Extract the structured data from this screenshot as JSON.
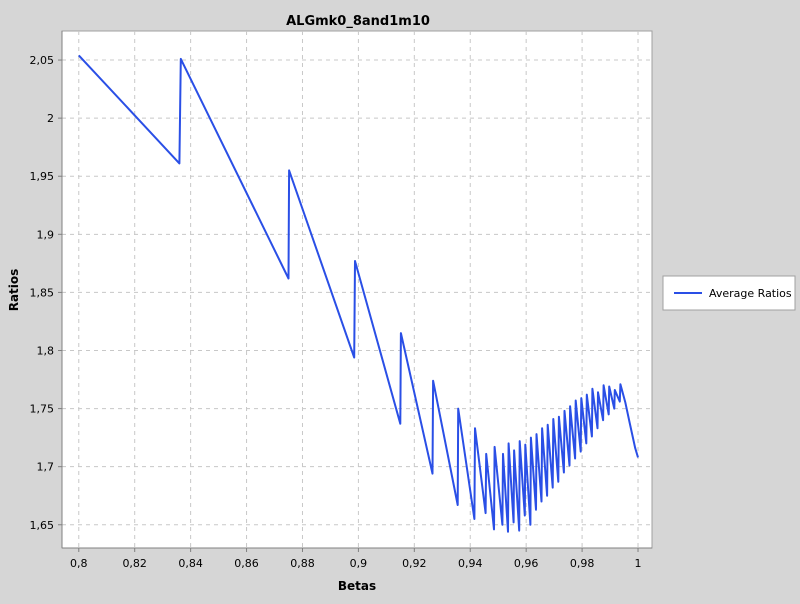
{
  "chart_data": {
    "type": "line",
    "title": "ALGmk0_8and1m10",
    "xlabel": "Betas",
    "ylabel": "Ratios",
    "xlim": [
      0.794,
      1.005
    ],
    "ylim": [
      1.63,
      2.075
    ],
    "x_ticks": [
      0.8,
      0.82,
      0.84,
      0.86,
      0.88,
      0.9,
      0.92,
      0.94,
      0.96,
      0.98,
      1.0
    ],
    "x_tick_labels": [
      "0,8",
      "0,82",
      "0,84",
      "0,86",
      "0,88",
      "0,9",
      "0,92",
      "0,94",
      "0,96",
      "0,98",
      "1"
    ],
    "y_ticks": [
      1.65,
      1.7,
      1.75,
      1.8,
      1.85,
      1.9,
      1.95,
      2.0,
      2.05
    ],
    "y_tick_labels": [
      "1,65",
      "1,7",
      "1,75",
      "1,8",
      "1,85",
      "1,9",
      "1,95",
      "2",
      "2,05"
    ],
    "grid": true,
    "legend_position": "right",
    "colors": {
      "series": "#2a4fe6",
      "plot_bg": "#ffffff",
      "page_bg": "#d6d6d6",
      "grid": "#c8c8c8"
    },
    "series": [
      {
        "name": "Average Ratios",
        "points": [
          [
            0.8,
            2.054
          ],
          [
            0.836,
            1.961
          ],
          [
            0.8365,
            2.051
          ],
          [
            0.875,
            1.862
          ],
          [
            0.8752,
            1.955
          ],
          [
            0.8985,
            1.794
          ],
          [
            0.8988,
            1.877
          ],
          [
            0.915,
            1.737
          ],
          [
            0.9152,
            1.815
          ],
          [
            0.9265,
            1.694
          ],
          [
            0.9267,
            1.774
          ],
          [
            0.9355,
            1.667
          ],
          [
            0.9357,
            1.75
          ],
          [
            0.9415,
            1.655
          ],
          [
            0.9417,
            1.733
          ],
          [
            0.9455,
            1.66
          ],
          [
            0.9457,
            1.711
          ],
          [
            0.9485,
            1.646
          ],
          [
            0.9487,
            1.717
          ],
          [
            0.9515,
            1.65
          ],
          [
            0.9517,
            1.711
          ],
          [
            0.9535,
            1.644
          ],
          [
            0.9537,
            1.72
          ],
          [
            0.9555,
            1.652
          ],
          [
            0.9557,
            1.714
          ],
          [
            0.9575,
            1.645
          ],
          [
            0.9577,
            1.722
          ],
          [
            0.9595,
            1.658
          ],
          [
            0.9597,
            1.719
          ],
          [
            0.9615,
            1.65
          ],
          [
            0.9617,
            1.725
          ],
          [
            0.9635,
            1.663
          ],
          [
            0.9637,
            1.728
          ],
          [
            0.9655,
            1.67
          ],
          [
            0.9657,
            1.733
          ],
          [
            0.9675,
            1.675
          ],
          [
            0.9677,
            1.736
          ],
          [
            0.9695,
            1.682
          ],
          [
            0.9697,
            1.741
          ],
          [
            0.9715,
            1.687
          ],
          [
            0.9717,
            1.743
          ],
          [
            0.9735,
            1.695
          ],
          [
            0.9737,
            1.748
          ],
          [
            0.9755,
            1.701
          ],
          [
            0.9757,
            1.752
          ],
          [
            0.9775,
            1.707
          ],
          [
            0.9777,
            1.757
          ],
          [
            0.9795,
            1.713
          ],
          [
            0.9797,
            1.759
          ],
          [
            0.9815,
            1.72
          ],
          [
            0.9817,
            1.762
          ],
          [
            0.9835,
            1.726
          ],
          [
            0.9837,
            1.767
          ],
          [
            0.9855,
            1.733
          ],
          [
            0.9857,
            1.764
          ],
          [
            0.9875,
            1.74
          ],
          [
            0.9877,
            1.77
          ],
          [
            0.9895,
            1.745
          ],
          [
            0.9897,
            1.769
          ],
          [
            0.9915,
            1.75
          ],
          [
            0.9917,
            1.766
          ],
          [
            0.9935,
            1.756
          ],
          [
            0.9937,
            1.771
          ],
          [
            0.9955,
            1.755
          ],
          [
            0.997,
            1.738
          ],
          [
            0.999,
            1.716
          ],
          [
            1.0,
            1.708
          ]
        ]
      }
    ]
  }
}
